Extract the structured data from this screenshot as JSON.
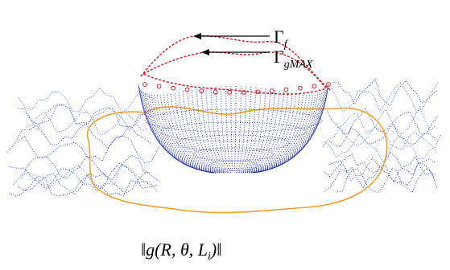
{
  "labels": [
    {
      "symbol": "Γ",
      "subscript": "f"
    },
    {
      "symbol": "Γ",
      "subscript": "gMAX"
    }
  ],
  "caption": {
    "before": "‖g(R, θ, L",
    "subscript": "i",
    "after": ")‖"
  }
}
